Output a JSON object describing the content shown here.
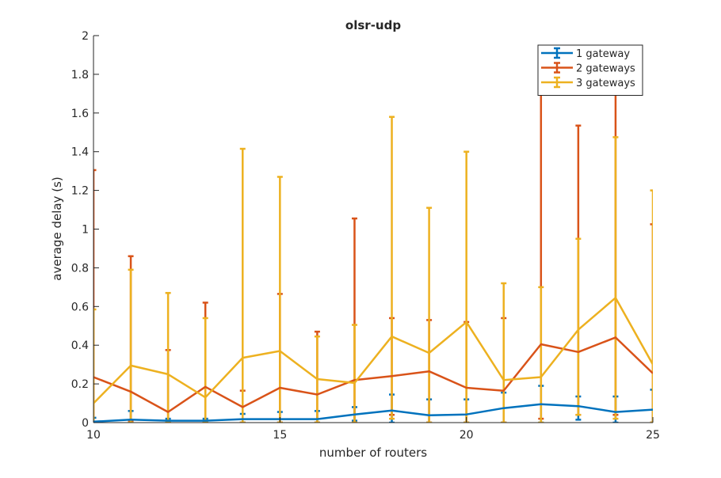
{
  "chart_data": {
    "type": "line",
    "title": "olsr-udp",
    "xlabel": "number of routers",
    "ylabel": "average delay (s)",
    "xlim": [
      10,
      25
    ],
    "ylim": [
      0,
      2
    ],
    "x_ticks": [
      "10",
      "15",
      "20",
      "25"
    ],
    "y_ticks": [
      "0",
      "0.2",
      "0.4",
      "0.6",
      "0.8",
      "1",
      "1.2",
      "1.4",
      "1.6",
      "1.8",
      "2"
    ],
    "grid": false,
    "error_bars": true,
    "legend_position": "top-right",
    "x": [
      10,
      11,
      12,
      13,
      14,
      15,
      16,
      17,
      18,
      19,
      20,
      21,
      22,
      23,
      24,
      25
    ],
    "series": [
      {
        "name": "1 gateway",
        "color": "#0072BD",
        "values": [
          0.005,
          0.015,
          0.01,
          0.01,
          0.018,
          0.018,
          0.018,
          0.042,
          0.062,
          0.038,
          0.042,
          0.075,
          0.095,
          0.085,
          0.055,
          0.067
        ],
        "upper": [
          0.025,
          0.06,
          0.02,
          0.02,
          0.045,
          0.055,
          0.06,
          0.08,
          0.145,
          0.12,
          0.12,
          0.155,
          0.19,
          0.135,
          0.135,
          0.17
        ],
        "lower": [
          0.0,
          0.0,
          0.0,
          0.0,
          0.0,
          0.0,
          0.0,
          0.01,
          0.0,
          0.0,
          0.0,
          0.0,
          0.0,
          0.015,
          0.0,
          0.0
        ]
      },
      {
        "name": "2 gateways",
        "color": "#D95319",
        "values": [
          0.235,
          0.16,
          0.055,
          0.185,
          0.08,
          0.18,
          0.145,
          0.22,
          0.24,
          0.265,
          0.18,
          0.165,
          0.405,
          0.365,
          0.44,
          0.255
        ],
        "upper": [
          1.305,
          0.86,
          0.375,
          0.62,
          0.165,
          0.665,
          0.47,
          1.055,
          0.54,
          0.53,
          0.52,
          0.54,
          1.93,
          1.535,
          1.93,
          1.025
        ],
        "lower": [
          0.0,
          0.01,
          0.0,
          0.0,
          0.0,
          0.0,
          0.0,
          0.0,
          0.04,
          0.0,
          0.0,
          0.0,
          0.02,
          0.04,
          0.04,
          0.0
        ]
      },
      {
        "name": "3 gateways",
        "color": "#EDB120",
        "values": [
          0.1,
          0.295,
          0.25,
          0.13,
          0.335,
          0.37,
          0.225,
          0.205,
          0.445,
          0.36,
          0.52,
          0.22,
          0.235,
          0.48,
          0.645,
          0.3
        ],
        "upper": [
          0.585,
          0.79,
          0.67,
          0.54,
          1.415,
          1.27,
          0.445,
          0.505,
          1.58,
          1.11,
          1.4,
          0.72,
          0.7,
          0.95,
          1.475,
          1.2
        ],
        "lower": [
          0.0,
          0.0,
          0.0,
          0.0,
          0.0,
          0.0,
          0.0,
          0.0,
          0.02,
          0.0,
          0.0,
          0.0,
          0.0,
          0.04,
          0.02,
          0.0
        ]
      }
    ]
  }
}
